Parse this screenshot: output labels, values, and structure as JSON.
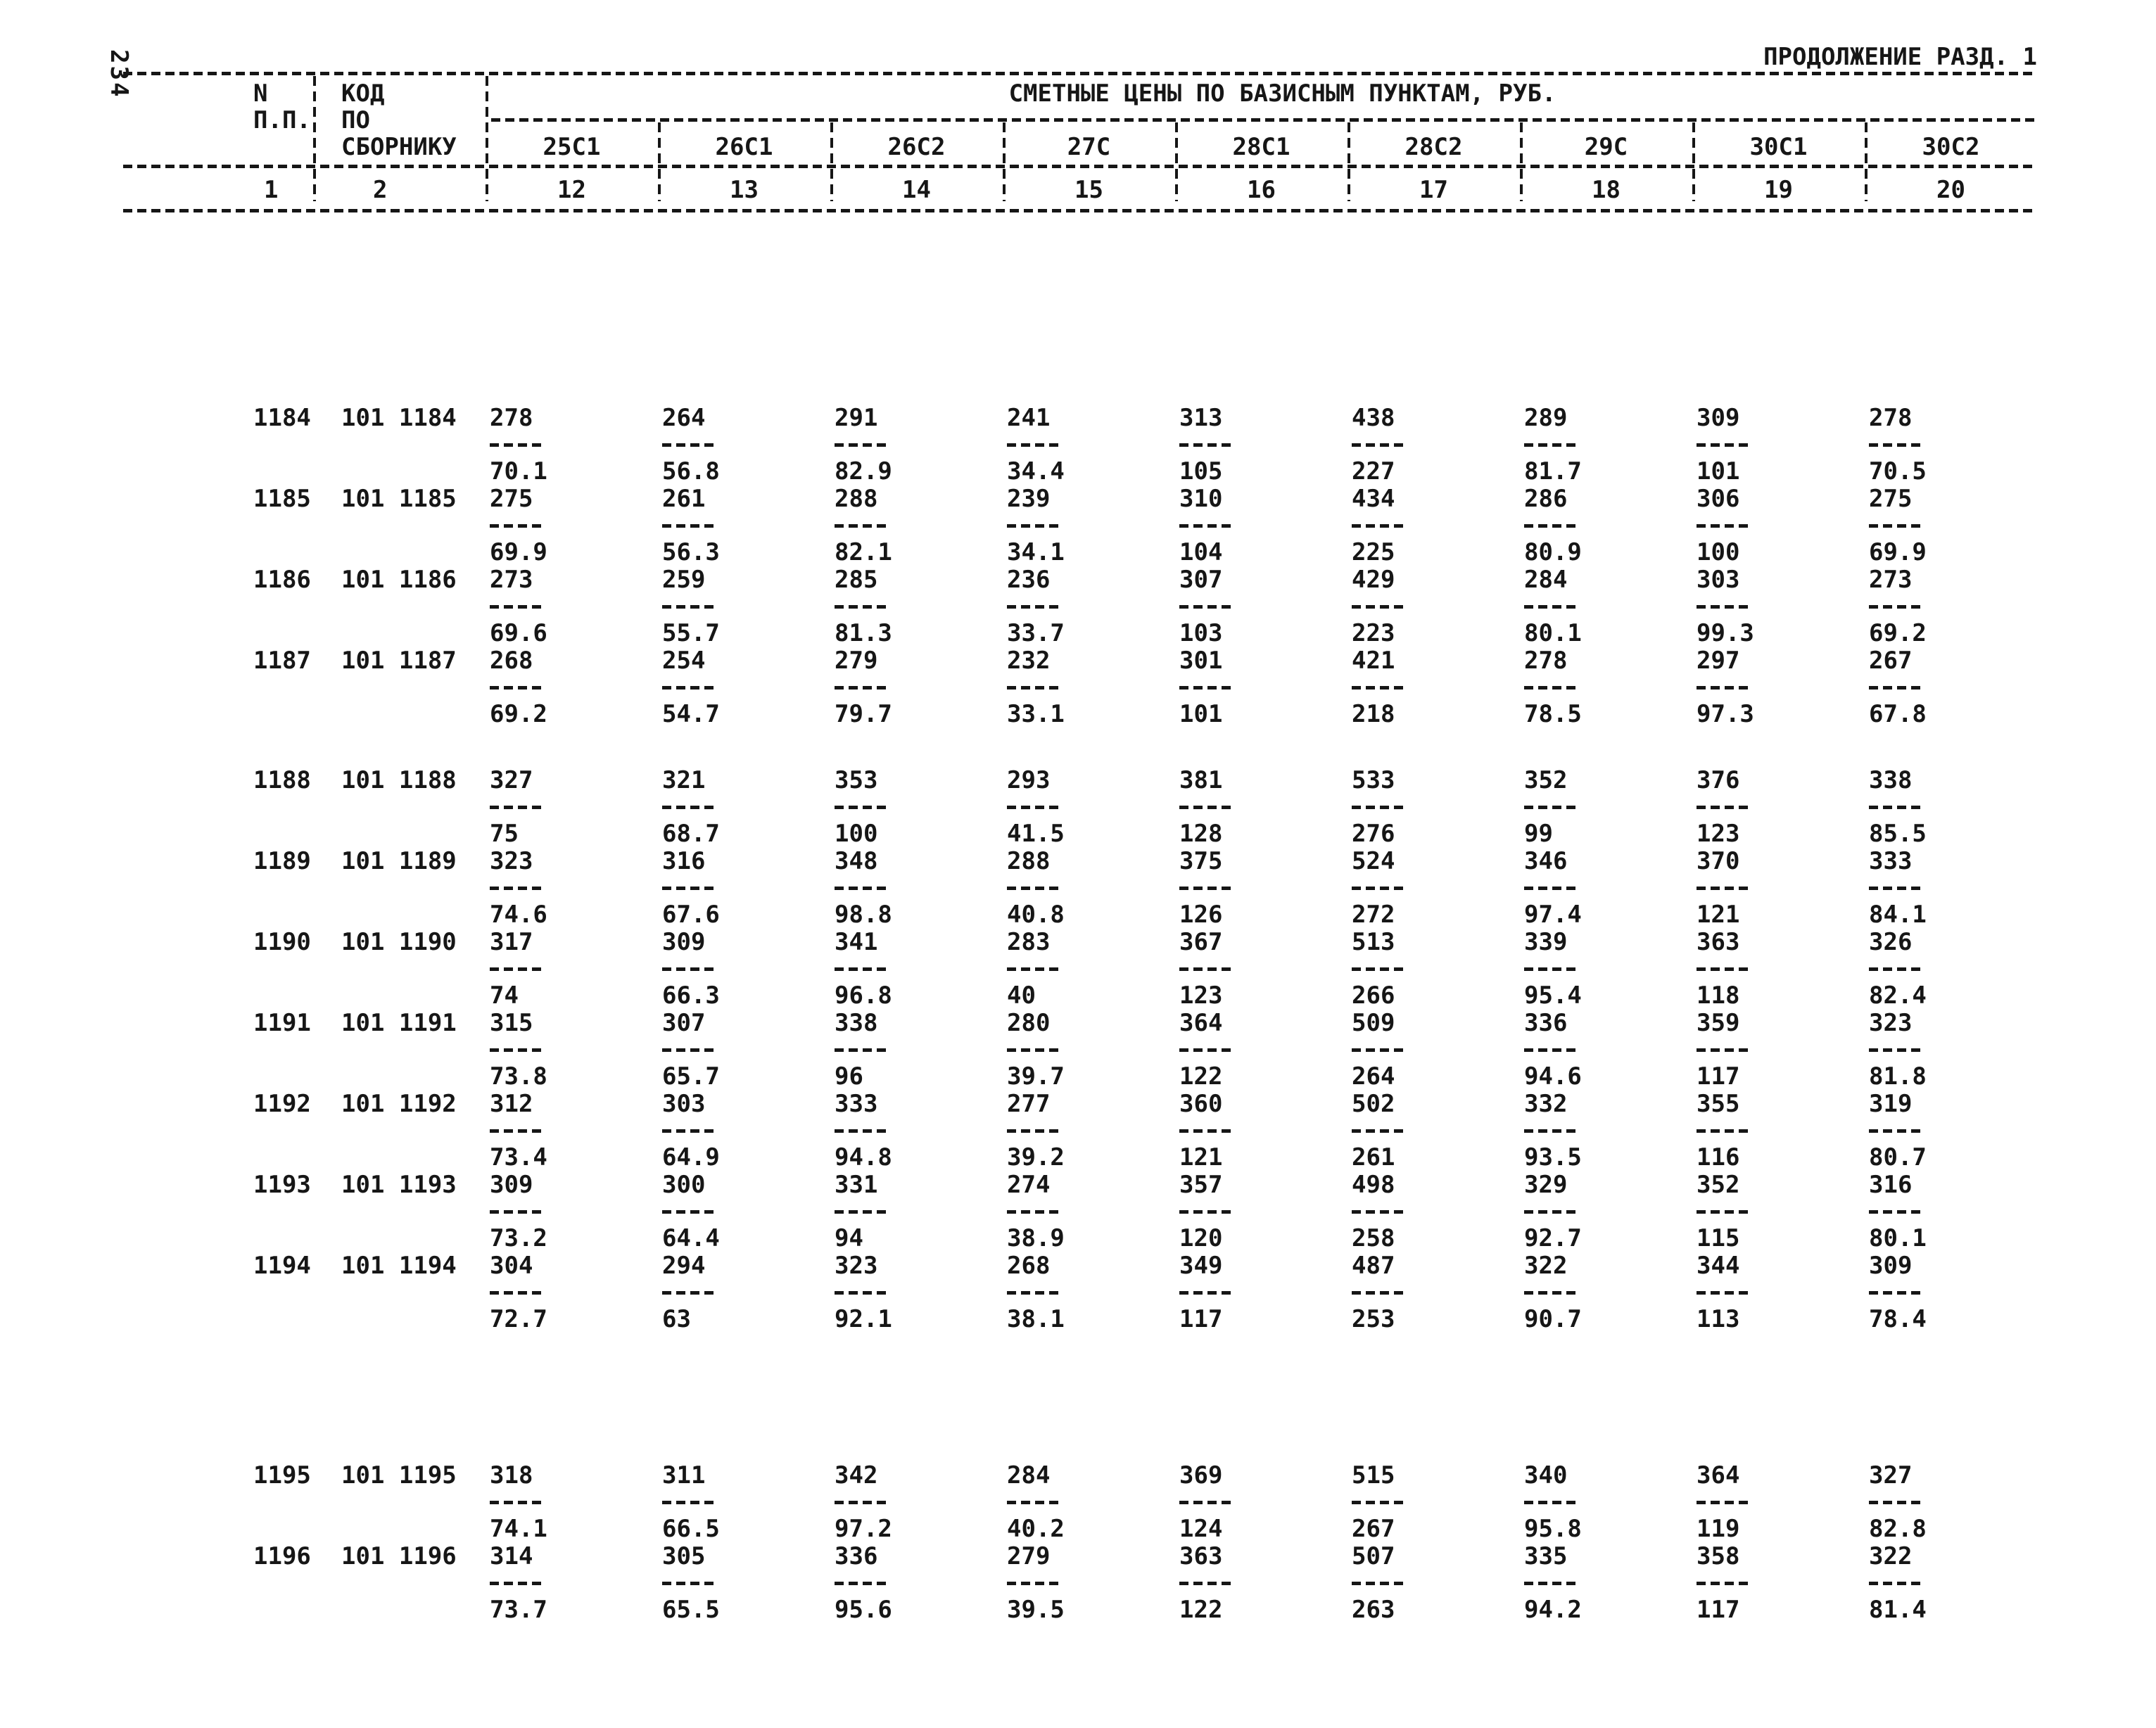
{
  "page": {
    "number": "234",
    "continuation": "ПРОДОЛЖЕНИЕ РАЗД. 1"
  },
  "table": {
    "title": "СМЕТНЫЕ ЦЕНЫ ПО БАЗИСНЫМ ПУНКТАМ, РУБ.",
    "col1_header_line1": "N",
    "col1_header_line2": "П.П.",
    "col1_number": "1",
    "col2_header_line1": "КОД",
    "col2_header_line2": "ПО",
    "col2_header_line3": "СБОРНИКУ",
    "col2_number": "2",
    "price_columns": [
      {
        "label": "25С1",
        "number": "12"
      },
      {
        "label": "26С1",
        "number": "13"
      },
      {
        "label": "26С2",
        "number": "14"
      },
      {
        "label": "27С",
        "number": "15"
      },
      {
        "label": "28С1",
        "number": "16"
      },
      {
        "label": "28С2",
        "number": "17"
      },
      {
        "label": "29С",
        "number": "18"
      },
      {
        "label": "30С1",
        "number": "19"
      },
      {
        "label": "30С2",
        "number": "20"
      }
    ],
    "groups": [
      {
        "rows": [
          {
            "n": "1184",
            "code": "101 1184",
            "values": [
              [
                "278",
                "70.1"
              ],
              [
                "264",
                "56.8"
              ],
              [
                "291",
                "82.9"
              ],
              [
                "241",
                "34.4"
              ],
              [
                "313",
                "105"
              ],
              [
                "438",
                "227"
              ],
              [
                "289",
                "81.7"
              ],
              [
                "309",
                "101"
              ],
              [
                "278",
                "70.5"
              ]
            ]
          },
          {
            "n": "1185",
            "code": "101 1185",
            "values": [
              [
                "275",
                "69.9"
              ],
              [
                "261",
                "56.3"
              ],
              [
                "288",
                "82.1"
              ],
              [
                "239",
                "34.1"
              ],
              [
                "310",
                "104"
              ],
              [
                "434",
                "225"
              ],
              [
                "286",
                "80.9"
              ],
              [
                "306",
                "100"
              ],
              [
                "275",
                "69.9"
              ]
            ]
          },
          {
            "n": "1186",
            "code": "101 1186",
            "values": [
              [
                "273",
                "69.6"
              ],
              [
                "259",
                "55.7"
              ],
              [
                "285",
                "81.3"
              ],
              [
                "236",
                "33.7"
              ],
              [
                "307",
                "103"
              ],
              [
                "429",
                "223"
              ],
              [
                "284",
                "80.1"
              ],
              [
                "303",
                "99.3"
              ],
              [
                "273",
                "69.2"
              ]
            ]
          },
          {
            "n": "1187",
            "code": "101 1187",
            "values": [
              [
                "268",
                "69.2"
              ],
              [
                "254",
                "54.7"
              ],
              [
                "279",
                "79.7"
              ],
              [
                "232",
                "33.1"
              ],
              [
                "301",
                "101"
              ],
              [
                "421",
                "218"
              ],
              [
                "278",
                "78.5"
              ],
              [
                "297",
                "97.3"
              ],
              [
                "267",
                "67.8"
              ]
            ]
          }
        ]
      },
      {
        "rows": [
          {
            "n": "1188",
            "code": "101 1188",
            "values": [
              [
                "327",
                "75"
              ],
              [
                "321",
                "68.7"
              ],
              [
                "353",
                "100"
              ],
              [
                "293",
                "41.5"
              ],
              [
                "381",
                "128"
              ],
              [
                "533",
                "276"
              ],
              [
                "352",
                "99"
              ],
              [
                "376",
                "123"
              ],
              [
                "338",
                "85.5"
              ]
            ]
          },
          {
            "n": "1189",
            "code": "101 1189",
            "values": [
              [
                "323",
                "74.6"
              ],
              [
                "316",
                "67.6"
              ],
              [
                "348",
                "98.8"
              ],
              [
                "288",
                "40.8"
              ],
              [
                "375",
                "126"
              ],
              [
                "524",
                "272"
              ],
              [
                "346",
                "97.4"
              ],
              [
                "370",
                "121"
              ],
              [
                "333",
                "84.1"
              ]
            ]
          },
          {
            "n": "1190",
            "code": "101 1190",
            "values": [
              [
                "317",
                "74"
              ],
              [
                "309",
                "66.3"
              ],
              [
                "341",
                "96.8"
              ],
              [
                "283",
                "40"
              ],
              [
                "367",
                "123"
              ],
              [
                "513",
                "266"
              ],
              [
                "339",
                "95.4"
              ],
              [
                "363",
                "118"
              ],
              [
                "326",
                "82.4"
              ]
            ]
          },
          {
            "n": "1191",
            "code": "101 1191",
            "values": [
              [
                "315",
                "73.8"
              ],
              [
                "307",
                "65.7"
              ],
              [
                "338",
                "96"
              ],
              [
                "280",
                "39.7"
              ],
              [
                "364",
                "122"
              ],
              [
                "509",
                "264"
              ],
              [
                "336",
                "94.6"
              ],
              [
                "359",
                "117"
              ],
              [
                "323",
                "81.8"
              ]
            ]
          },
          {
            "n": "1192",
            "code": "101 1192",
            "values": [
              [
                "312",
                "73.4"
              ],
              [
                "303",
                "64.9"
              ],
              [
                "333",
                "94.8"
              ],
              [
                "277",
                "39.2"
              ],
              [
                "360",
                "121"
              ],
              [
                "502",
                "261"
              ],
              [
                "332",
                "93.5"
              ],
              [
                "355",
                "116"
              ],
              [
                "319",
                "80.7"
              ]
            ]
          },
          {
            "n": "1193",
            "code": "101 1193",
            "values": [
              [
                "309",
                "73.2"
              ],
              [
                "300",
                "64.4"
              ],
              [
                "331",
                "94"
              ],
              [
                "274",
                "38.9"
              ],
              [
                "357",
                "120"
              ],
              [
                "498",
                "258"
              ],
              [
                "329",
                "92.7"
              ],
              [
                "352",
                "115"
              ],
              [
                "316",
                "80.1"
              ]
            ]
          },
          {
            "n": "1194",
            "code": "101 1194",
            "values": [
              [
                "304",
                "72.7"
              ],
              [
                "294",
                "63"
              ],
              [
                "323",
                "92.1"
              ],
              [
                "268",
                "38.1"
              ],
              [
                "349",
                "117"
              ],
              [
                "487",
                "253"
              ],
              [
                "322",
                "90.7"
              ],
              [
                "344",
                "113"
              ],
              [
                "309",
                "78.4"
              ]
            ]
          }
        ]
      },
      {
        "rows": [
          {
            "n": "1195",
            "code": "101 1195",
            "values": [
              [
                "318",
                "74.1"
              ],
              [
                "311",
                "66.5"
              ],
              [
                "342",
                "97.2"
              ],
              [
                "284",
                "40.2"
              ],
              [
                "369",
                "124"
              ],
              [
                "515",
                "267"
              ],
              [
                "340",
                "95.8"
              ],
              [
                "364",
                "119"
              ],
              [
                "327",
                "82.8"
              ]
            ]
          },
          {
            "n": "1196",
            "code": "101 1196",
            "values": [
              [
                "314",
                "73.7"
              ],
              [
                "305",
                "65.5"
              ],
              [
                "336",
                "95.6"
              ],
              [
                "279",
                "39.5"
              ],
              [
                "363",
                "122"
              ],
              [
                "507",
                "263"
              ],
              [
                "335",
                "94.2"
              ],
              [
                "358",
                "117"
              ],
              [
                "322",
                "81.4"
              ]
            ]
          }
        ]
      }
    ]
  }
}
